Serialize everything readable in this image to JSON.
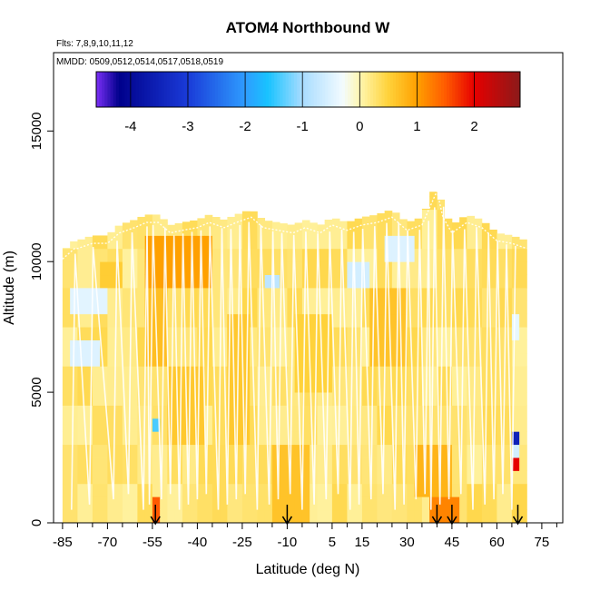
{
  "chart_data": {
    "type": "heatmap",
    "title": "ATOM4 Northbound W",
    "subtitle_flights": "Flts: 7,8,9,10,11,12",
    "subtitle_dates": "MMDD: 0509,0512,0514,0517,0518,0519",
    "xlabel": "Latitude (deg N)",
    "ylabel": "Altitude (m)",
    "xlim": [
      -88,
      82
    ],
    "ylim": [
      0,
      18000
    ],
    "x_tick_labels": [
      "-85",
      "-70",
      "-55",
      "-40",
      "-25",
      "-10",
      "5",
      "15",
      "30",
      "45",
      "60",
      "75"
    ],
    "x_tick_values": [
      -85,
      -70,
      -55,
      -40,
      -25,
      -10,
      5,
      15,
      30,
      45,
      60,
      75
    ],
    "x_minor_ticks": [
      -80,
      -75,
      -65,
      -60,
      -50,
      -45,
      -35,
      -30,
      -20,
      -15,
      -5,
      0,
      10,
      20,
      25,
      35,
      40,
      50,
      55,
      65,
      70,
      80
    ],
    "y_tick_labels": [
      "0",
      "5000",
      "10000",
      "15000"
    ],
    "y_tick_values": [
      0,
      5000,
      10000,
      15000
    ],
    "colorbar": {
      "range": [
        -4.6,
        2.8
      ],
      "tick_labels": [
        "-4",
        "-3",
        "-2",
        "-1",
        "0",
        "1",
        "2"
      ],
      "tick_values": [
        -4,
        -3,
        -2,
        -1,
        0,
        1,
        2
      ],
      "stops": [
        {
          "v": -4.6,
          "c": "#7b2ff7"
        },
        {
          "v": -4.2,
          "c": "#00008b"
        },
        {
          "v": -3.0,
          "c": "#1a3bd8"
        },
        {
          "v": -2.0,
          "c": "#2e9cff"
        },
        {
          "v": -1.6,
          "c": "#19c3ff"
        },
        {
          "v": -1.0,
          "c": "#a8dcff"
        },
        {
          "v": -0.3,
          "c": "#f2fbff"
        },
        {
          "v": 0.0,
          "c": "#fff7b0"
        },
        {
          "v": 0.5,
          "c": "#ffd23a"
        },
        {
          "v": 1.0,
          "c": "#ffa000"
        },
        {
          "v": 1.5,
          "c": "#ff5a00"
        },
        {
          "v": 2.0,
          "c": "#e60000"
        },
        {
          "v": 2.8,
          "c": "#8b1a1a"
        }
      ]
    },
    "arrow_latitudes": [
      -54,
      -10,
      40,
      45,
      67
    ],
    "ceiling_profile": {
      "lat": [
        -85,
        -81,
        -80,
        -75,
        -70,
        -66,
        -61,
        -57,
        -53,
        -49,
        -45,
        -40,
        -36,
        -31,
        -27,
        -22,
        -18,
        -13,
        -8,
        -4,
        1,
        5,
        10,
        15,
        20,
        25,
        30,
        35,
        40,
        42,
        45,
        50,
        55,
        60,
        65,
        70
      ],
      "alt": [
        10400,
        10800,
        10800,
        11000,
        11000,
        11400,
        11600,
        11800,
        11800,
        11400,
        11500,
        11600,
        11800,
        11600,
        11800,
        12000,
        11600,
        11500,
        11400,
        11600,
        11400,
        11700,
        11500,
        11700,
        11800,
        12000,
        11500,
        11700,
        13000,
        12000,
        11400,
        11800,
        11600,
        11100,
        11000,
        10800
      ]
    },
    "features": [
      {
        "lat": [
          -58,
          -34
        ],
        "alt": [
          9000,
          11200
        ],
        "value": 1.0
      },
      {
        "lat": [
          -57,
          -49
        ],
        "alt": [
          6000,
          9000
        ],
        "value": 0.7
      },
      {
        "lat": [
          -50,
          -37
        ],
        "alt": [
          3000,
          6000
        ],
        "value": 0.6
      },
      {
        "lat": [
          -72,
          -66
        ],
        "alt": [
          9200,
          10200
        ],
        "value": 0.55
      },
      {
        "lat": [
          -82,
          -70
        ],
        "alt": [
          8000,
          9000
        ],
        "value": -0.45
      },
      {
        "lat": [
          -82,
          -73
        ],
        "alt": [
          6000,
          7000
        ],
        "value": -0.5
      },
      {
        "lat": [
          -17,
          -12
        ],
        "alt": [
          8800,
          9400
        ],
        "value": -0.8
      },
      {
        "lat": [
          10,
          17
        ],
        "alt": [
          8800,
          9800
        ],
        "value": -0.6
      },
      {
        "lat": [
          22,
          33
        ],
        "alt": [
          9800,
          10800
        ],
        "value": -0.5
      },
      {
        "lat": [
          -8,
          5
        ],
        "alt": [
          5000,
          8000
        ],
        "value": 0.5
      },
      {
        "lat": [
          -31,
          -23
        ],
        "alt": [
          3000,
          8000
        ],
        "value": 0.6
      },
      {
        "lat": [
          -14,
          -3
        ],
        "alt": [
          0,
          3000
        ],
        "value": 0.65
      },
      {
        "lat": [
          33,
          45
        ],
        "alt": [
          1200,
          3200
        ],
        "value": 0.8
      },
      {
        "lat": [
          38,
          47
        ],
        "alt": [
          0,
          1200
        ],
        "value": 1.2
      },
      {
        "lat": [
          18,
          30
        ],
        "alt": [
          6000,
          9000
        ],
        "value": 0.65
      },
      {
        "lat": [
          -55,
          -53
        ],
        "alt": [
          0,
          800
        ],
        "value": 1.5
      },
      {
        "lat": [
          64,
          66
        ],
        "alt": [
          0,
          800
        ],
        "value": 1.4
      },
      {
        "lat": [
          66,
          68
        ],
        "alt": [
          2000,
          2500
        ],
        "value": 2.0
      },
      {
        "lat": [
          66,
          68
        ],
        "alt": [
          3200,
          3600
        ],
        "value": -3.5
      },
      {
        "lat": [
          66,
          68
        ],
        "alt": [
          2600,
          3100
        ],
        "value": -0.6
      },
      {
        "lat": [
          -54,
          -52
        ],
        "alt": [
          3500,
          4000
        ],
        "value": -1.4
      },
      {
        "lat": [
          64,
          67
        ],
        "alt": [
          7000,
          8000
        ],
        "value": -0.4
      }
    ]
  }
}
